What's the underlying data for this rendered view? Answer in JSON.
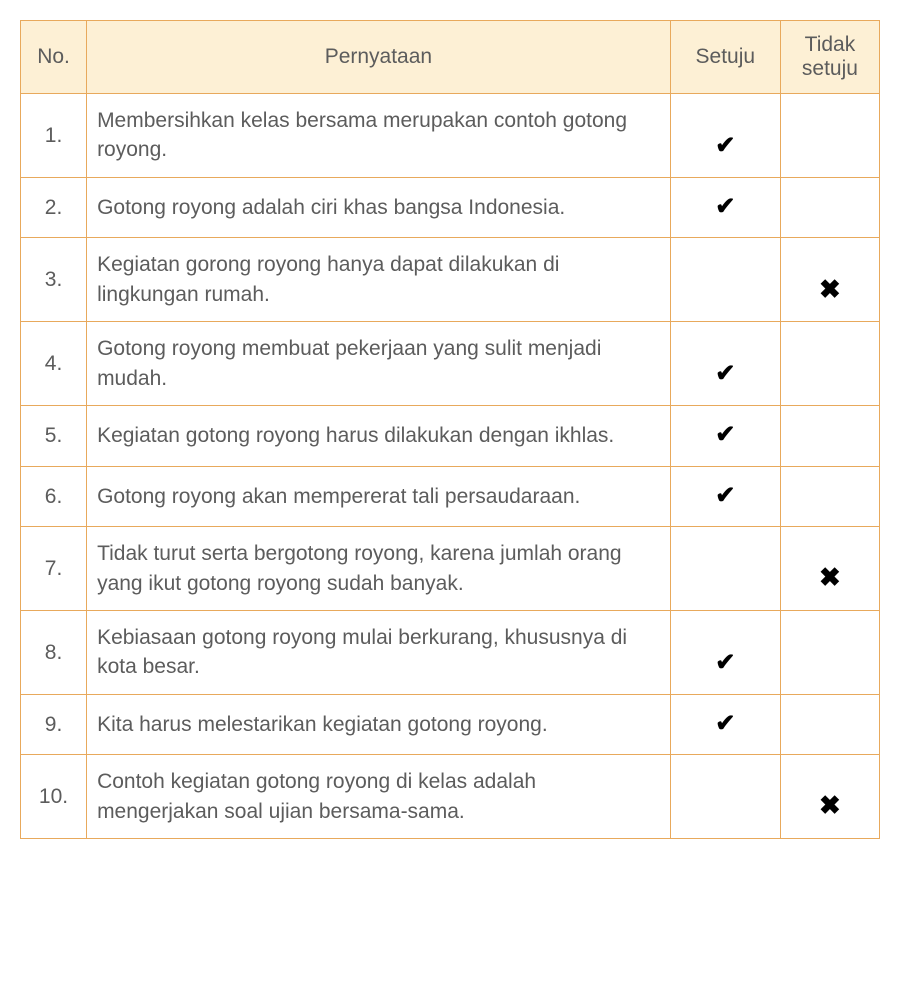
{
  "table": {
    "headers": {
      "no": "No.",
      "pernyataan": "Pernyataan",
      "setuju": "Setuju",
      "tidak_setuju": "Tidak setuju"
    },
    "check_mark": "✔",
    "cross_mark": "✖",
    "colors": {
      "border": "#e8a95c",
      "header_bg": "#fdf0d5",
      "text": "#5c5c5c",
      "mark": "#000000",
      "background": "#ffffff"
    },
    "fontsize": {
      "header": 21,
      "cell": 21,
      "mark": 24
    },
    "column_widths": {
      "no": 60,
      "pernyataan": 530,
      "setuju": 100,
      "tidak": 90
    },
    "rows": [
      {
        "no": "1.",
        "statement": "Membersihkan kelas bersama merupakan contoh gotong royong.",
        "setuju": true,
        "tidak_setuju": false
      },
      {
        "no": "2.",
        "statement": "Gotong royong adalah ciri khas bangsa Indonesia.",
        "setuju": true,
        "tidak_setuju": false
      },
      {
        "no": "3.",
        "statement": "Kegiatan gorong royong hanya dapat dilakukan di lingkungan rumah.",
        "setuju": false,
        "tidak_setuju": true
      },
      {
        "no": "4.",
        "statement": "Gotong royong membuat pekerjaan yang sulit menjadi mudah.",
        "setuju": true,
        "tidak_setuju": false
      },
      {
        "no": "5.",
        "statement": "Kegiatan gotong royong harus dilakukan dengan ikhlas.",
        "setuju": true,
        "tidak_setuju": false
      },
      {
        "no": "6.",
        "statement": "Gotong royong akan mempererat tali persaudaraan.",
        "setuju": true,
        "tidak_setuju": false
      },
      {
        "no": "7.",
        "statement": "Tidak turut serta bergotong royong, karena jumlah orang yang ikut gotong royong sudah banyak.",
        "setuju": false,
        "tidak_setuju": true
      },
      {
        "no": "8.",
        "statement": "Kebiasaan gotong royong mulai berkurang, khususnya di kota besar.",
        "setuju": true,
        "tidak_setuju": false
      },
      {
        "no": "9.",
        "statement": "Kita harus melestarikan kegiatan gotong royong.",
        "setuju": true,
        "tidak_setuju": false
      },
      {
        "no": "10.",
        "statement": "Contoh kegiatan gotong royong di kelas adalah mengerjakan soal ujian bersama-sama.",
        "setuju": false,
        "tidak_setuju": true
      }
    ]
  }
}
